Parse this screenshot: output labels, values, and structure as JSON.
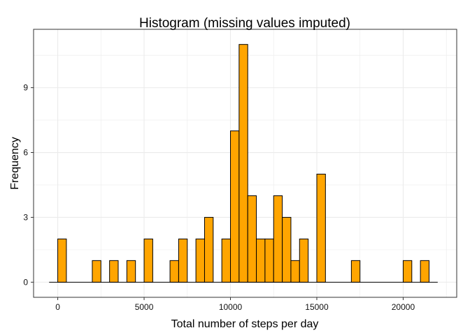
{
  "chart_data": {
    "type": "bar",
    "title": "Histogram (missing values imputed)",
    "xlabel": "Total number of steps per day",
    "ylabel": "Frequency",
    "xlim": [
      -1400,
      23100
    ],
    "ylim": [
      -0.7,
      11.7
    ],
    "x_ticks": [
      0,
      5000,
      10000,
      15000,
      20000
    ],
    "x_tick_labels": [
      "0",
      "5000",
      "10000",
      "15000",
      "20000"
    ],
    "y_ticks": [
      0,
      3,
      6,
      9
    ],
    "y_tick_labels": [
      "0",
      "3",
      "6",
      "9"
    ],
    "bin_width": 500,
    "bin_range": [
      -500,
      22000
    ],
    "bins": [
      {
        "x": 0,
        "count": 0
      },
      {
        "x": 250,
        "count": 2
      },
      {
        "x": 2250,
        "count": 1
      },
      {
        "x": 3250,
        "count": 1
      },
      {
        "x": 4250,
        "count": 1
      },
      {
        "x": 5250,
        "count": 2
      },
      {
        "x": 6750,
        "count": 1
      },
      {
        "x": 7250,
        "count": 2
      },
      {
        "x": 8250,
        "count": 2
      },
      {
        "x": 8750,
        "count": 3
      },
      {
        "x": 9750,
        "count": 2
      },
      {
        "x": 10250,
        "count": 7
      },
      {
        "x": 10750,
        "count": 11
      },
      {
        "x": 11250,
        "count": 4
      },
      {
        "x": 11750,
        "count": 2
      },
      {
        "x": 12250,
        "count": 2
      },
      {
        "x": 12750,
        "count": 4
      },
      {
        "x": 13250,
        "count": 3
      },
      {
        "x": 13750,
        "count": 1
      },
      {
        "x": 14250,
        "count": 2
      },
      {
        "x": 15250,
        "count": 5
      },
      {
        "x": 17250,
        "count": 1
      },
      {
        "x": 20250,
        "count": 1
      },
      {
        "x": 21250,
        "count": 1
      }
    ],
    "fill_color": "#FFA500",
    "stroke_color": "#000000",
    "grid": true,
    "grid_color": "#EBEBEB",
    "panel_border_color": "#333333"
  }
}
